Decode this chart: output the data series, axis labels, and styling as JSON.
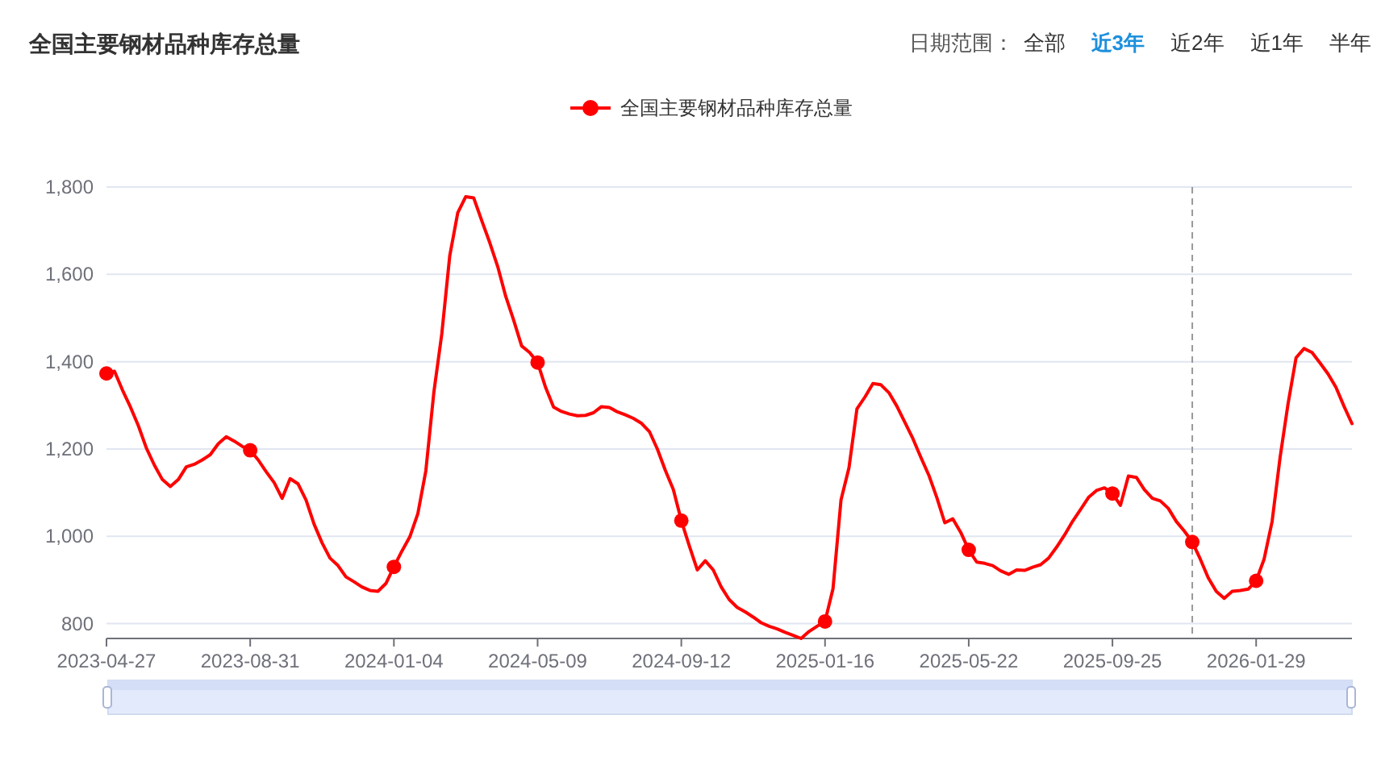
{
  "chart_data": {
    "type": "line",
    "title": "全国主要钢材品种库存总量",
    "annotations": [
      "日期范围：",
      "全部",
      "近3年",
      "近2年",
      "近1年",
      "半年"
    ],
    "x": [
      "2023-04-27",
      "2023-05-04",
      "2023-05-11",
      "2023-05-18",
      "2023-05-25",
      "2023-06-01",
      "2023-06-08",
      "2023-06-15",
      "2023-06-22",
      "2023-06-29",
      "2023-07-06",
      "2023-07-13",
      "2023-07-20",
      "2023-07-27",
      "2023-08-03",
      "2023-08-10",
      "2023-08-17",
      "2023-08-24",
      "2023-08-31",
      "2023-09-07",
      "2023-09-14",
      "2023-09-21",
      "2023-09-28",
      "2023-10-05",
      "2023-10-12",
      "2023-10-19",
      "2023-10-26",
      "2023-11-02",
      "2023-11-09",
      "2023-11-16",
      "2023-11-23",
      "2023-11-30",
      "2023-12-07",
      "2023-12-14",
      "2023-12-21",
      "2023-12-28",
      "2024-01-04",
      "2024-01-11",
      "2024-01-18",
      "2024-01-25",
      "2024-02-01",
      "2024-02-08",
      "2024-02-15",
      "2024-02-22",
      "2024-02-29",
      "2024-03-07",
      "2024-03-14",
      "2024-03-21",
      "2024-03-28",
      "2024-04-04",
      "2024-04-11",
      "2024-04-18",
      "2024-04-25",
      "2024-05-02",
      "2024-05-09",
      "2024-05-16",
      "2024-05-23",
      "2024-05-30",
      "2024-06-06",
      "2024-06-13",
      "2024-06-20",
      "2024-06-27",
      "2024-07-04",
      "2024-07-11",
      "2024-07-18",
      "2024-07-25",
      "2024-08-01",
      "2024-08-08",
      "2024-08-15",
      "2024-08-22",
      "2024-08-29",
      "2024-09-05",
      "2024-09-12",
      "2024-09-19",
      "2024-09-26",
      "2024-10-03",
      "2024-10-10",
      "2024-10-17",
      "2024-10-24",
      "2024-10-31",
      "2024-11-07",
      "2024-11-14",
      "2024-11-21",
      "2024-11-28",
      "2024-12-05",
      "2024-12-12",
      "2024-12-19",
      "2024-12-26",
      "2025-01-02",
      "2025-01-09",
      "2025-01-16",
      "2025-01-23",
      "2025-01-30",
      "2025-02-06",
      "2025-02-13",
      "2025-02-20",
      "2025-02-27",
      "2025-03-06",
      "2025-03-13",
      "2025-03-20",
      "2025-03-27",
      "2025-04-03",
      "2025-04-10",
      "2025-04-17",
      "2025-04-24",
      "2025-05-01",
      "2025-05-08",
      "2025-05-15",
      "2025-05-22",
      "2025-05-29",
      "2025-06-05",
      "2025-06-12",
      "2025-06-19",
      "2025-06-26",
      "2025-07-03",
      "2025-07-10",
      "2025-07-17",
      "2025-07-24",
      "2025-07-31",
      "2025-08-07",
      "2025-08-14",
      "2025-08-21",
      "2025-08-28",
      "2025-09-04",
      "2025-09-11",
      "2025-09-18",
      "2025-09-25",
      "2025-10-02",
      "2025-10-09",
      "2025-10-16",
      "2025-10-23",
      "2025-10-30",
      "2025-11-06",
      "2025-11-13",
      "2025-11-20",
      "2025-11-27",
      "2025-12-04",
      "2025-12-11",
      "2025-12-18",
      "2025-12-25",
      "2026-01-01",
      "2026-01-08",
      "2026-01-15",
      "2026-01-22",
      "2026-01-29",
      "2026-02-05",
      "2026-02-12",
      "2026-02-19",
      "2026-02-26",
      "2026-03-05",
      "2026-03-12",
      "2026-03-19",
      "2026-03-26",
      "2026-04-02",
      "2026-04-09",
      "2026-04-16",
      "2026-04-23"
    ],
    "series": [
      {
        "name": "全国主要钢材品种库存总量",
        "color": "#ff0000",
        "values": [
          1373,
          1378,
          1335,
          1296,
          1253,
          1202,
          1163,
          1130,
          1114,
          1130,
          1159,
          1165,
          1175,
          1187,
          1212,
          1228,
          1218,
          1206,
          1197,
          1175,
          1148,
          1123,
          1087,
          1132,
          1120,
          1083,
          1028,
          985,
          950,
          933,
          907,
          896,
          884,
          876,
          874,
          892,
          930,
          966,
          999,
          1052,
          1150,
          1329,
          1464,
          1643,
          1741,
          1778,
          1775,
          1723,
          1673,
          1618,
          1550,
          1495,
          1436,
          1421,
          1398,
          1341,
          1296,
          1286,
          1280,
          1276,
          1277,
          1283,
          1297,
          1295,
          1285,
          1278,
          1270,
          1259,
          1240,
          1200,
          1151,
          1107,
          1036,
          978,
          923,
          944,
          923,
          884,
          855,
          837,
          827,
          815,
          802,
          794,
          788,
          780,
          773,
          766,
          782,
          794,
          805,
          880,
          1083,
          1157,
          1292,
          1319,
          1350,
          1347,
          1329,
          1298,
          1261,
          1224,
          1181,
          1140,
          1089,
          1031,
          1040,
          1009,
          969,
          941,
          938,
          933,
          921,
          913,
          923,
          922,
          929,
          935,
          950,
          975,
          1003,
          1034,
          1061,
          1089,
          1105,
          1111,
          1098,
          1071,
          1138,
          1135,
          1107,
          1087,
          1081,
          1064,
          1034,
          1012,
          987,
          948,
          905,
          874,
          858,
          874,
          876,
          879,
          898,
          948,
          1034,
          1181,
          1304,
          1409,
          1430,
          1421,
          1397,
          1372,
          1341,
          1298,
          1258
        ]
      },
      {
        "type": "scatter",
        "color": "#ff0000",
        "marker": "circle",
        "x": [
          "2023-04-27",
          "2023-08-31",
          "2024-01-04",
          "2024-05-09",
          "2024-09-12",
          "2025-01-16",
          "2025-05-22",
          "2025-09-25",
          "2025-12-04",
          "2026-01-29"
        ],
        "values": [
          1373,
          1197,
          930,
          1398,
          1036,
          805,
          969,
          1098,
          987,
          898
        ]
      }
    ],
    "xlim": [
      "2023-04-27",
      "2026-04-23"
    ],
    "xticks": [
      "2023-04-27",
      "2023-08-31",
      "2024-01-04",
      "2024-05-09",
      "2024-09-12",
      "2025-01-16",
      "2025-05-22",
      "2025-09-25",
      "2026-01-29"
    ],
    "ylim": [
      766,
      1800
    ],
    "yticks": [
      800,
      {
        "value": 1000,
        "label": "1,000"
      },
      {
        "value": 1200,
        "label": "1,200"
      },
      {
        "value": 1400,
        "label": "1,400"
      },
      {
        "value": 1600,
        "label": "1,600"
      },
      {
        "value": 1800,
        "label": "1,800"
      }
    ],
    "grid": "y",
    "legend": "top",
    "line_style": "solid",
    "ref_lines": [
      {
        "axis": "x",
        "value": "2025-12-04",
        "color": "#999999",
        "line_style": "dashed"
      }
    ]
  }
}
